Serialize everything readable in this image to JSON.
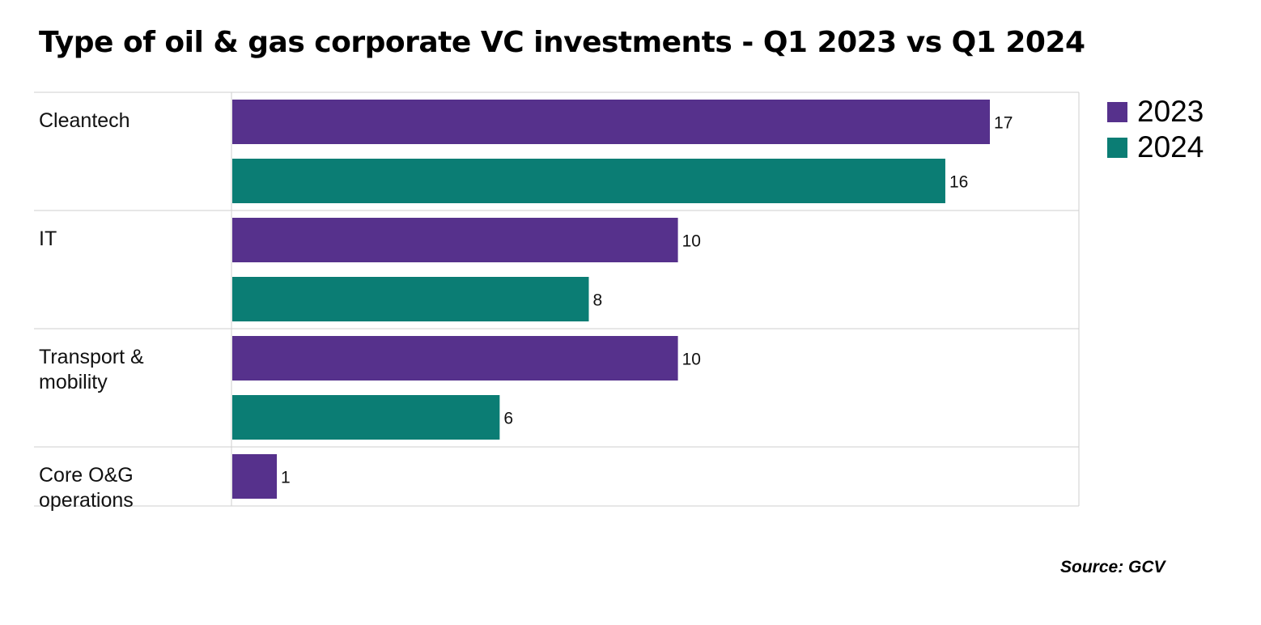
{
  "title": "Type of oil & gas corporate VC investments - Q1 2023 vs Q1 2024",
  "source": "Source: GCV",
  "chart_data": {
    "type": "bar",
    "orientation": "horizontal",
    "title": "Type of oil & gas corporate VC investments - Q1 2023 vs Q1 2024",
    "xlabel": "",
    "ylabel": "",
    "categories": [
      [
        "Cleantech"
      ],
      [
        "IT"
      ],
      [
        "Transport &",
        "mobility"
      ],
      [
        "Core O&G",
        "operations"
      ]
    ],
    "category_names": [
      "Cleantech",
      "IT",
      "Transport & mobility",
      "Core O&G operations"
    ],
    "series": [
      {
        "name": "2023",
        "color": "#56318c",
        "values": [
          17,
          10,
          10,
          1
        ]
      },
      {
        "name": "2024",
        "color": "#0b7d74",
        "values": [
          16,
          8,
          6,
          null
        ]
      }
    ],
    "xlim": [
      0,
      18.9
    ],
    "grid": false,
    "legend": "top-right",
    "data_labels": true
  }
}
